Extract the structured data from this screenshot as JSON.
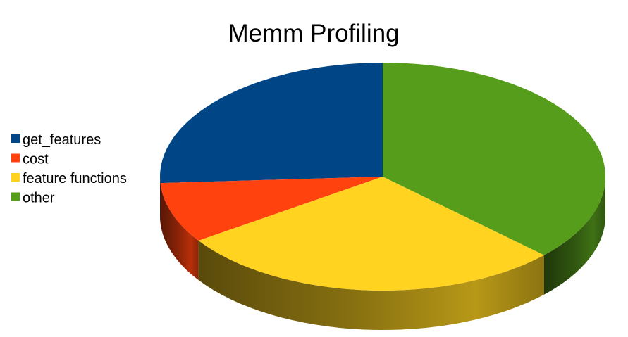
{
  "chart_data": {
    "type": "pie",
    "title": "Memm Profiling",
    "legend_position": "left",
    "series": [
      {
        "name": "get_features",
        "value": 25.9,
        "color": "#004586"
      },
      {
        "name": "cost",
        "value": 8.6,
        "color": "#ff420e"
      },
      {
        "name": "feature functions",
        "value": 28.4,
        "color": "#ffd320"
      },
      {
        "name": "other",
        "value": 37.1,
        "color": "#579d1c"
      }
    ]
  }
}
